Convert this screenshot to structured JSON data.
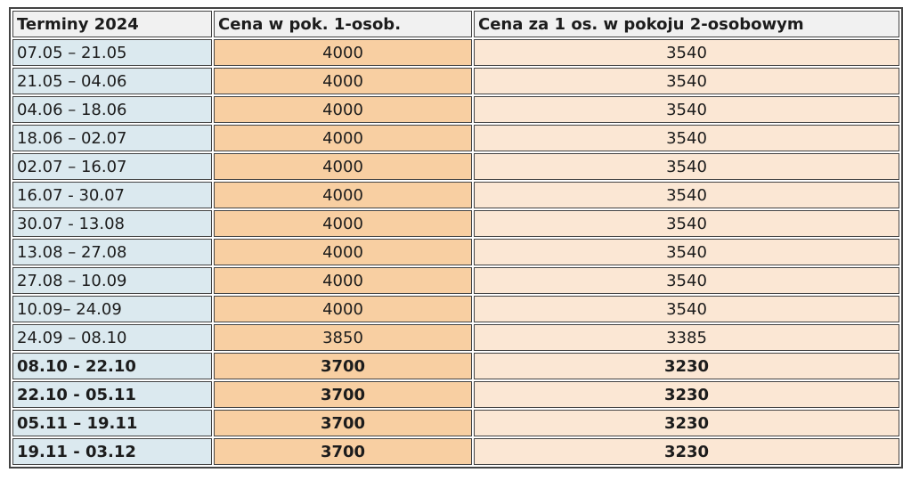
{
  "table": {
    "title": "Terminy 2024 price table",
    "colors": {
      "header_bg": "#f1f1f1",
      "term_bg": "#dbe9ef",
      "single_bg": "#f8cfa2",
      "double_bg": "#fbe7d4",
      "border": "#434343",
      "text": "#1c1c1c"
    },
    "columns": [
      {
        "label": "Terminy 2024"
      },
      {
        "label": "Cena w pok. 1-osob."
      },
      {
        "label": "Cena za 1 os. w pokoju 2-osobowym"
      }
    ],
    "rows": [
      {
        "term": "07.05 – 21.05",
        "single": "4000",
        "double": "3540",
        "bold": false
      },
      {
        "term": "21.05 – 04.06",
        "single": "4000",
        "double": "3540",
        "bold": false
      },
      {
        "term": "04.06 – 18.06",
        "single": "4000",
        "double": "3540",
        "bold": false
      },
      {
        "term": "18.06 – 02.07",
        "single": "4000",
        "double": "3540",
        "bold": false
      },
      {
        "term": "02.07 – 16.07",
        "single": "4000",
        "double": "3540",
        "bold": false
      },
      {
        "term": "16.07 - 30.07",
        "single": "4000",
        "double": "3540",
        "bold": false
      },
      {
        "term": "30.07 - 13.08",
        "single": "4000",
        "double": "3540",
        "bold": false
      },
      {
        "term": "13.08 – 27.08",
        "single": "4000",
        "double": "3540",
        "bold": false
      },
      {
        "term": "27.08 – 10.09",
        "single": "4000",
        "double": "3540",
        "bold": false
      },
      {
        "term": "10.09– 24.09",
        "single": "4000",
        "double": "3540",
        "bold": false
      },
      {
        "term": "24.09 – 08.10",
        "single": "3850",
        "double": "3385",
        "bold": false
      },
      {
        "term": "08.10 - 22.10",
        "single": "3700",
        "double": "3230",
        "bold": true
      },
      {
        "term": "22.10 - 05.11",
        "single": "3700",
        "double": "3230",
        "bold": true
      },
      {
        "term": "05.11 – 19.11",
        "single": "3700",
        "double": "3230",
        "bold": true
      },
      {
        "term": "19.11 - 03.12",
        "single": "3700",
        "double": "3230",
        "bold": true
      }
    ]
  }
}
